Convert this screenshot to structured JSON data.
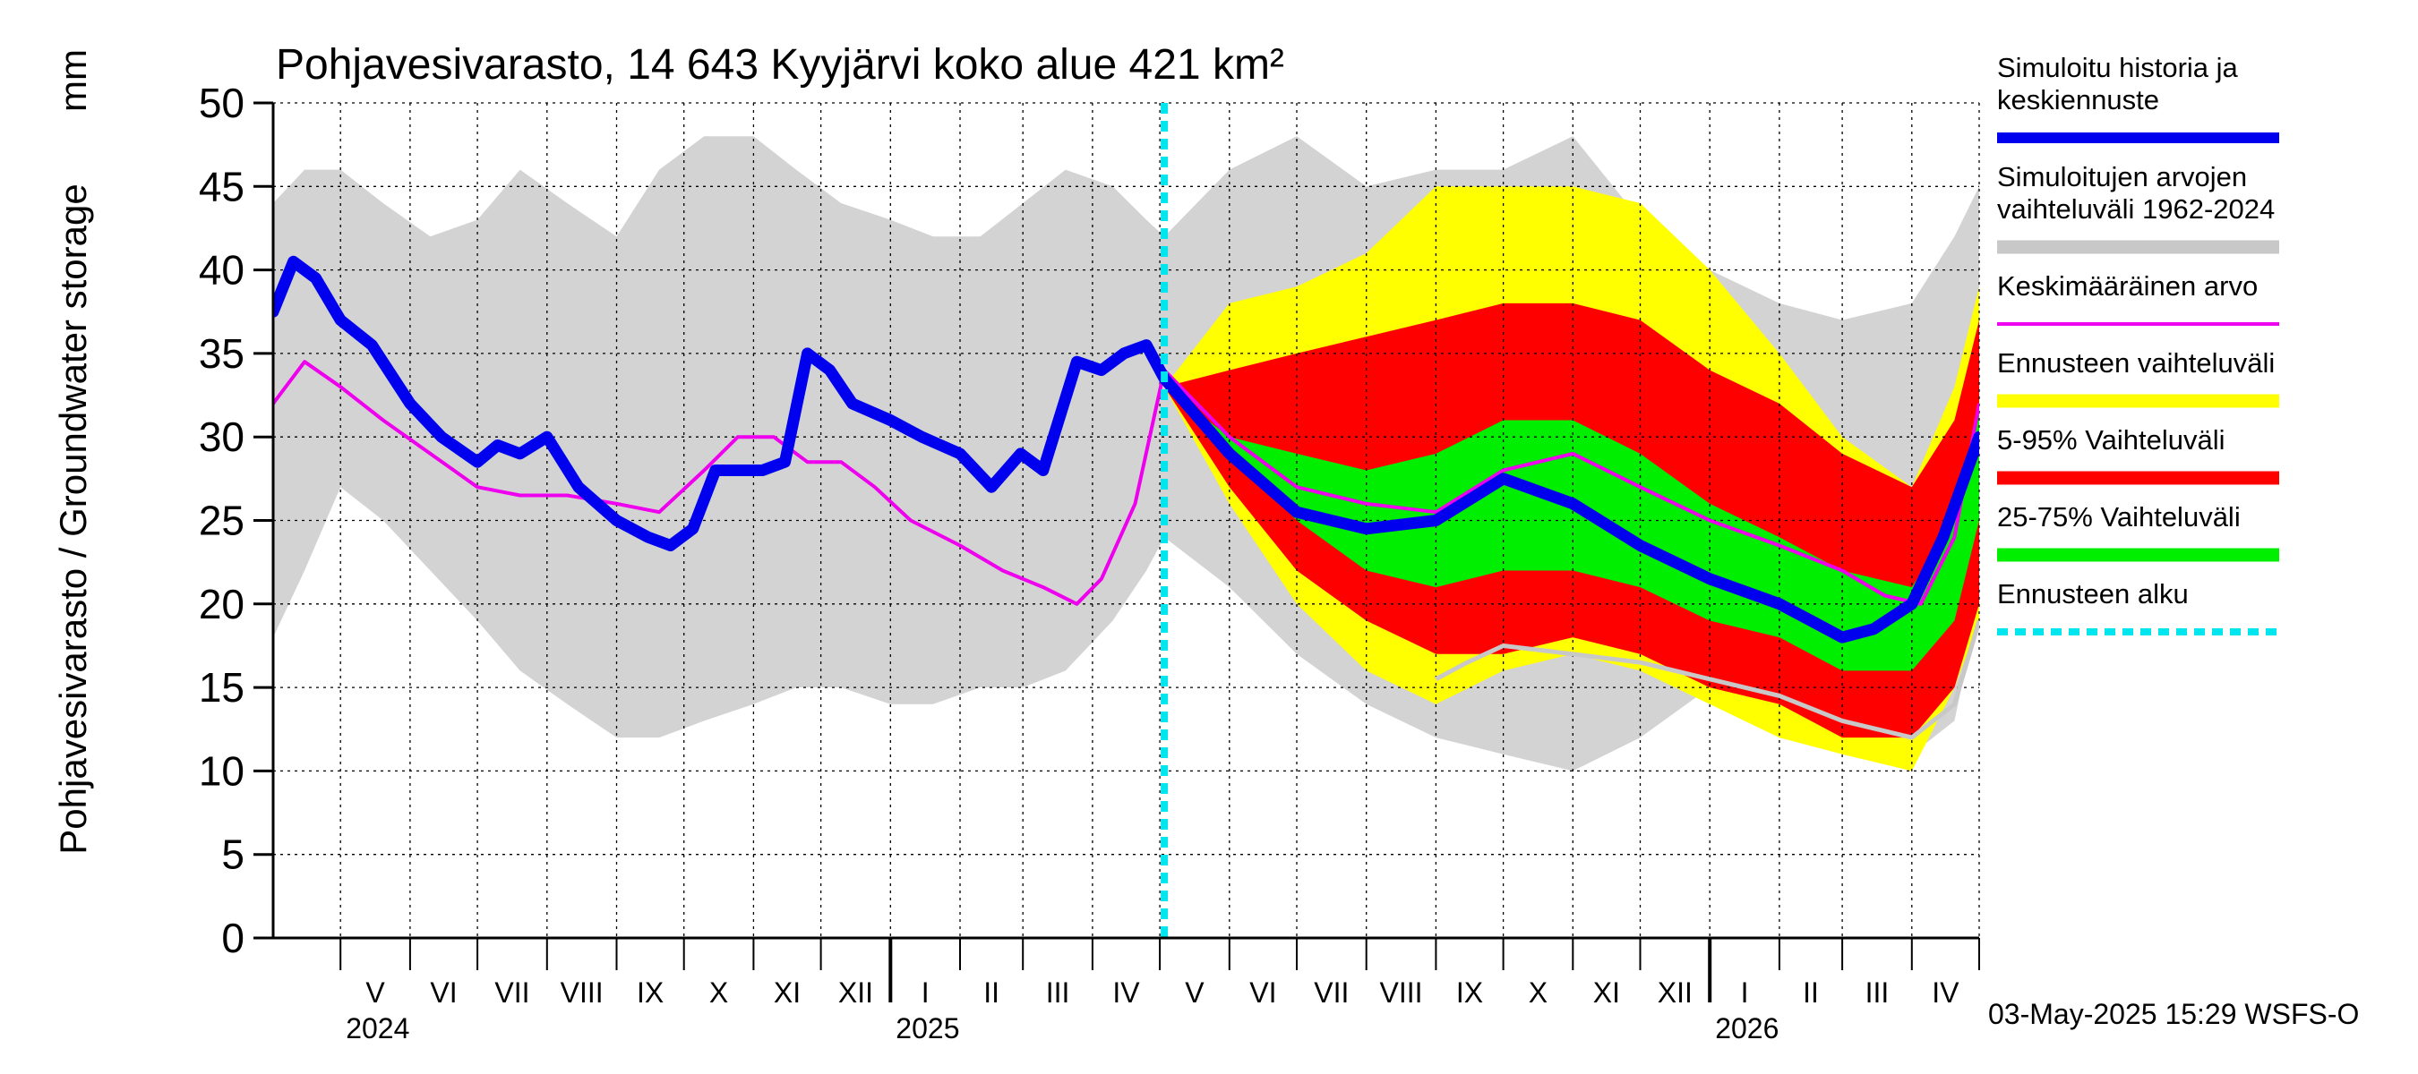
{
  "chart_data": {
    "type": "area",
    "title": "Pohjavesivarasto, 14 643 Kyyjärvi koko alue 421 km²",
    "ylabel": "Pohjavesivarasto / Groundwater storage",
    "yunit": "mm",
    "ylim": [
      0,
      50
    ],
    "yticks": [
      0,
      5,
      10,
      15,
      20,
      25,
      30,
      35,
      40,
      45,
      50
    ],
    "xlim": [
      "2024-04-01",
      "2026-05-01"
    ],
    "forecast_start": "2025-05-03",
    "grid": true,
    "legend_placement": "right",
    "timestamp": "03-May-2025 15:29 WSFS-O",
    "months": [
      {
        "label": "V",
        "start": "2024-05-01"
      },
      {
        "label": "VI",
        "start": "2024-06-01"
      },
      {
        "label": "VII",
        "start": "2024-07-01"
      },
      {
        "label": "VIII",
        "start": "2024-08-01"
      },
      {
        "label": "IX",
        "start": "2024-09-01"
      },
      {
        "label": "X",
        "start": "2024-10-01"
      },
      {
        "label": "XI",
        "start": "2024-11-01"
      },
      {
        "label": "XII",
        "start": "2024-12-01"
      },
      {
        "label": "I",
        "start": "2025-01-01"
      },
      {
        "label": "II",
        "start": "2025-02-01"
      },
      {
        "label": "III",
        "start": "2025-03-01"
      },
      {
        "label": "IV",
        "start": "2025-04-01"
      },
      {
        "label": "V",
        "start": "2025-05-01"
      },
      {
        "label": "VI",
        "start": "2025-06-01"
      },
      {
        "label": "VII",
        "start": "2025-07-01"
      },
      {
        "label": "VIII",
        "start": "2025-08-01"
      },
      {
        "label": "IX",
        "start": "2025-09-01"
      },
      {
        "label": "X",
        "start": "2025-10-01"
      },
      {
        "label": "XI",
        "start": "2025-11-01"
      },
      {
        "label": "XII",
        "start": "2025-12-01"
      },
      {
        "label": "I",
        "start": "2026-01-01"
      },
      {
        "label": "II",
        "start": "2026-02-01"
      },
      {
        "label": "III",
        "start": "2026-03-01"
      },
      {
        "label": "IV",
        "start": "2026-04-01"
      }
    ],
    "years": [
      {
        "label": "2024",
        "start": "2024-05-01"
      },
      {
        "label": "2025",
        "start": "2025-01-01"
      },
      {
        "label": "2026",
        "start": "2026-01-01"
      }
    ],
    "legend": [
      {
        "label": "Simuloitu historia ja keskiennuste",
        "color": "#0000ee",
        "kind": "line-thick"
      },
      {
        "label": "Simuloitujen arvojen vaihteluväli 1962-2024",
        "color": "#c8c8c8",
        "kind": "band"
      },
      {
        "label": "Keskimääräinen arvo",
        "color": "#ee00ee",
        "kind": "line-thin"
      },
      {
        "label": "Ennusteen vaihteluväli",
        "color": "#ffff00",
        "kind": "band"
      },
      {
        "label": "5-95% Vaihteluväli",
        "color": "#ff0000",
        "kind": "band"
      },
      {
        "label": "25-75% Vaihteluväli",
        "color": "#00ee00",
        "kind": "band"
      },
      {
        "label": "Ennusteen alku",
        "color": "#00e5ee",
        "kind": "line-dashed"
      }
    ],
    "series": [
      {
        "name": "Simuloitujen arvojen vaihteluväli 1962-2024",
        "role": "hist_band",
        "color": "#d3d3d3",
        "x": [
          "2024-04-01",
          "2024-04-15",
          "2024-05-01",
          "2024-05-20",
          "2024-06-10",
          "2024-07-01",
          "2024-07-20",
          "2024-08-10",
          "2024-09-01",
          "2024-09-20",
          "2024-10-10",
          "2024-11-01",
          "2024-11-20",
          "2024-12-10",
          "2025-01-01",
          "2025-01-20",
          "2025-02-10",
          "2025-03-01",
          "2025-03-20",
          "2025-04-10",
          "2025-04-25",
          "2025-05-03",
          "2025-06-01",
          "2025-07-01",
          "2025-08-01",
          "2025-09-01",
          "2025-10-01",
          "2025-11-01",
          "2025-12-01",
          "2026-01-01",
          "2026-02-01",
          "2026-03-01",
          "2026-04-01",
          "2026-04-20",
          "2026-05-01"
        ],
        "low": [
          18,
          22,
          27,
          25,
          22,
          19,
          16,
          14,
          12,
          12,
          13,
          14,
          15,
          15,
          14,
          14,
          15,
          15,
          16,
          19,
          22,
          24,
          21,
          17,
          14,
          12,
          11,
          10,
          12,
          15,
          15,
          13,
          11,
          13,
          20
        ],
        "high": [
          44,
          46,
          46,
          44,
          42,
          43,
          46,
          44,
          42,
          46,
          48,
          48,
          46,
          44,
          43,
          42,
          42,
          44,
          46,
          45,
          43,
          42,
          46,
          48,
          45,
          46,
          46,
          48,
          43,
          40,
          38,
          37,
          38,
          42,
          45
        ]
      },
      {
        "name": "Ennusteen vaihteluväli",
        "role": "fc_band",
        "color": "#ffff00",
        "x": [
          "2025-05-03",
          "2025-06-01",
          "2025-07-01",
          "2025-08-01",
          "2025-09-01",
          "2025-10-01",
          "2025-11-01",
          "2025-12-01",
          "2026-01-01",
          "2026-02-01",
          "2026-03-01",
          "2026-04-01",
          "2026-04-20",
          "2026-05-01"
        ],
        "low": [
          33,
          26,
          20,
          16,
          14,
          16,
          17,
          16,
          14,
          12,
          11,
          10,
          15,
          19
        ],
        "high": [
          33,
          38,
          39,
          41,
          45,
          45,
          45,
          44,
          40,
          35,
          30,
          27,
          33,
          39
        ]
      },
      {
        "name": "5-95% Vaihteluväli",
        "role": "p5_95",
        "color": "#ff0000",
        "x": [
          "2025-05-03",
          "2025-06-01",
          "2025-07-01",
          "2025-08-01",
          "2025-09-01",
          "2025-10-01",
          "2025-11-01",
          "2025-12-01",
          "2026-01-01",
          "2026-02-01",
          "2026-03-01",
          "2026-04-01",
          "2026-04-20",
          "2026-05-01"
        ],
        "low": [
          33,
          27,
          22,
          19,
          17,
          17,
          18,
          17,
          15,
          14,
          12,
          12,
          15,
          20
        ],
        "high": [
          33,
          34,
          35,
          36,
          37,
          38,
          38,
          37,
          34,
          32,
          29,
          27,
          31,
          37
        ]
      },
      {
        "name": "25-75% Vaihteluväli",
        "role": "p25_75",
        "color": "#00ee00",
        "x": [
          "2025-05-03",
          "2025-06-01",
          "2025-07-01",
          "2025-08-01",
          "2025-09-01",
          "2025-10-01",
          "2025-11-01",
          "2025-12-01",
          "2026-01-01",
          "2026-02-01",
          "2026-03-01",
          "2026-04-01",
          "2026-04-20",
          "2026-05-01"
        ],
        "low": [
          33,
          29,
          25,
          22,
          21,
          22,
          22,
          21,
          19,
          18,
          16,
          16,
          19,
          25
        ],
        "high": [
          33,
          30,
          29,
          28,
          29,
          31,
          31,
          29,
          26,
          24,
          22,
          21,
          25,
          32
        ]
      },
      {
        "name": "Keskimääräinen arvo",
        "role": "mean",
        "color": "#ee00ee",
        "x": [
          "2024-04-01",
          "2024-04-15",
          "2024-05-01",
          "2024-05-20",
          "2024-06-10",
          "2024-07-01",
          "2024-07-20",
          "2024-08-10",
          "2024-09-01",
          "2024-09-20",
          "2024-10-10",
          "2024-10-25",
          "2024-11-10",
          "2024-11-25",
          "2024-12-10",
          "2024-12-25",
          "2025-01-10",
          "2025-02-01",
          "2025-02-20",
          "2025-03-10",
          "2025-03-25",
          "2025-04-05",
          "2025-04-20",
          "2025-05-03",
          "2025-06-01",
          "2025-07-01",
          "2025-08-01",
          "2025-09-01",
          "2025-10-01",
          "2025-11-01",
          "2025-12-01",
          "2026-01-01",
          "2026-02-01",
          "2026-03-01",
          "2026-03-20",
          "2026-04-05",
          "2026-04-20",
          "2026-05-01"
        ],
        "y": [
          32,
          34.5,
          33,
          31,
          29,
          27,
          26.5,
          26.5,
          26,
          25.5,
          28,
          30,
          30,
          28.5,
          28.5,
          27,
          25,
          23.5,
          22,
          21,
          20,
          21.5,
          26,
          34,
          30,
          27,
          26,
          25.5,
          28,
          29,
          27,
          25,
          23.5,
          22,
          20.5,
          20,
          24,
          32
        ]
      },
      {
        "name": "Simuloitu historia ja keskiennuste",
        "role": "main",
        "color": "#0000ee",
        "x": [
          "2024-04-01",
          "2024-04-10",
          "2024-04-20",
          "2024-05-01",
          "2024-05-15",
          "2024-06-01",
          "2024-06-15",
          "2024-07-01",
          "2024-07-10",
          "2024-07-20",
          "2024-08-01",
          "2024-08-15",
          "2024-09-01",
          "2024-09-15",
          "2024-09-25",
          "2024-10-05",
          "2024-10-15",
          "2024-10-25",
          "2024-11-05",
          "2024-11-15",
          "2024-11-25",
          "2024-12-05",
          "2024-12-15",
          "2025-01-01",
          "2025-01-15",
          "2025-02-01",
          "2025-02-15",
          "2025-02-28",
          "2025-03-10",
          "2025-03-25",
          "2025-04-05",
          "2025-04-15",
          "2025-04-25",
          "2025-05-03",
          "2025-06-01",
          "2025-07-01",
          "2025-08-01",
          "2025-09-01",
          "2025-10-01",
          "2025-11-01",
          "2025-12-01",
          "2026-01-01",
          "2026-02-01",
          "2026-03-01",
          "2026-03-15",
          "2026-04-01",
          "2026-04-15",
          "2026-05-01"
        ],
        "y": [
          37.5,
          40.5,
          39.5,
          37,
          35.5,
          32,
          30,
          28.5,
          29.5,
          29,
          30,
          27,
          25,
          24,
          23.5,
          24.5,
          28,
          28,
          28,
          28.5,
          35,
          34,
          32,
          31,
          30,
          29,
          27,
          29,
          28,
          34.5,
          34,
          35,
          35.5,
          33.5,
          29,
          25.5,
          24.5,
          25,
          27.5,
          26,
          23.5,
          21.5,
          20,
          18,
          18.5,
          20,
          24,
          30
        ]
      },
      {
        "name": "",
        "role": "hist_min_line",
        "color": "#c8c8c8",
        "x": [
          "2025-09-01",
          "2025-09-15",
          "2025-10-01",
          "2025-11-01",
          "2025-12-01",
          "2026-01-01",
          "2026-02-01",
          "2026-03-01",
          "2026-04-01",
          "2026-04-20",
          "2026-05-01"
        ],
        "y": [
          15.5,
          16.5,
          17.5,
          17,
          16.5,
          15.5,
          14.5,
          13,
          12,
          14,
          19
        ]
      }
    ]
  }
}
